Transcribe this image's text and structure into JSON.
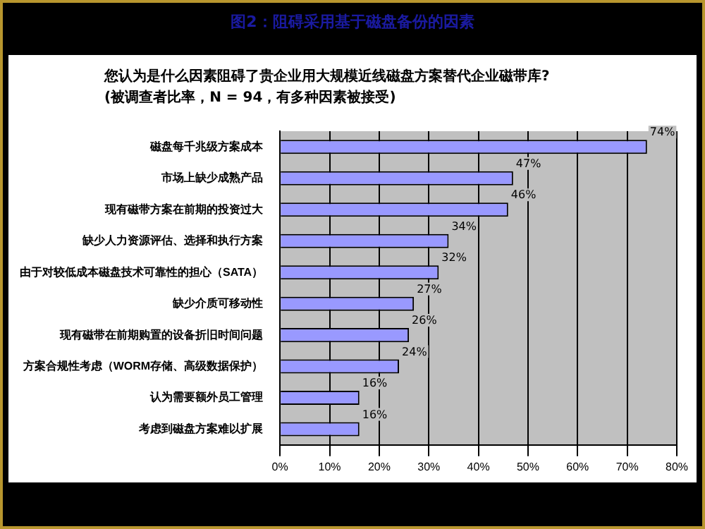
{
  "chart_data": {
    "type": "bar",
    "orientation": "horizontal",
    "title": "图2：阻碍采用基于磁盘备份的因素",
    "subtitle": "您认为是什么因素阻碍了贵企业用大规模近线磁盘方案替代企业磁带库?",
    "annotations": [
      "(被调查者比率，N = 94，有多种因素被接受)"
    ],
    "categories": [
      "磁盘每千兆级方案成本",
      "市场上缺少成熟产品",
      "现有磁带方案在前期的投资过大",
      "缺少人力资源评估、选择和执行方案",
      "由于对较低成本磁盘技术可靠性的担心（SATA）",
      "缺少介质可移动性",
      "现有磁带在前期购置的设备折旧时间问题",
      "方案合规性考虑（WORM存储、高级数据保护）",
      "认为需要额外员工管理",
      "考虑到磁盘方案难以扩展"
    ],
    "values": [
      74,
      47,
      46,
      34,
      32,
      27,
      26,
      24,
      16,
      16
    ],
    "value_labels": [
      "74%",
      "47%",
      "46%",
      "34%",
      "32%",
      "27%",
      "26%",
      "24%",
      "16%",
      "16%"
    ],
    "color": "#9999ff",
    "xlim": [
      0,
      80
    ],
    "xticks": [
      {
        "value": 0,
        "label": "0%"
      },
      {
        "value": 10,
        "label": "10%"
      },
      {
        "value": 20,
        "label": "20%"
      },
      {
        "value": 30,
        "label": "30%"
      },
      {
        "value": 40,
        "label": "40%"
      },
      {
        "value": 50,
        "label": "50%"
      },
      {
        "value": 60,
        "label": "60%"
      },
      {
        "value": 70,
        "label": "70%"
      },
      {
        "value": 80,
        "label": "80%"
      }
    ],
    "grid": "x",
    "legend": false
  }
}
